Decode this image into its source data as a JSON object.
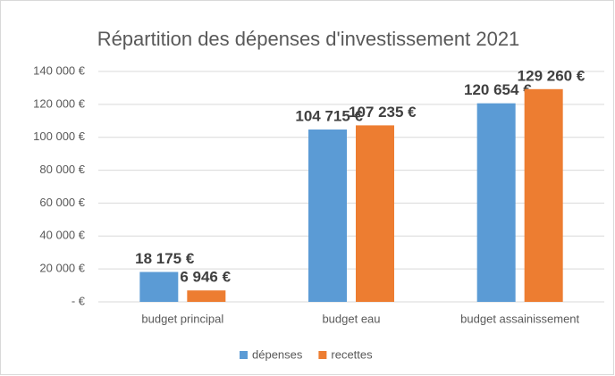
{
  "chart_data": {
    "type": "bar",
    "title": "Répartition des dépenses d'investissement 2021",
    "categories": [
      "budget principal",
      "budget eau",
      "budget assainissement"
    ],
    "series": [
      {
        "name": "dépenses",
        "color": "#5b9bd5",
        "values": [
          18175,
          104715,
          120654
        ],
        "value_labels": [
          "18 175 €",
          "104 715 €",
          "120 654 €"
        ]
      },
      {
        "name": "recettes",
        "color": "#ed7d31",
        "values": [
          6946,
          107235,
          129260
        ],
        "value_labels": [
          "6 946 €",
          "107 235 €",
          "129 260 €"
        ]
      }
    ],
    "ylim": [
      0,
      140000
    ],
    "yticks": [
      {
        "value": 0,
        "label": "-  €"
      },
      {
        "value": 20000,
        "label": "20 000 €"
      },
      {
        "value": 40000,
        "label": "40 000 €"
      },
      {
        "value": 60000,
        "label": "60 000 €"
      },
      {
        "value": 80000,
        "label": "80 000 €"
      },
      {
        "value": 100000,
        "label": "100 000 €"
      },
      {
        "value": 120000,
        "label": "120 000 €"
      },
      {
        "value": 140000,
        "label": "140 000 €"
      }
    ],
    "grid": true,
    "legend": "bottom"
  }
}
